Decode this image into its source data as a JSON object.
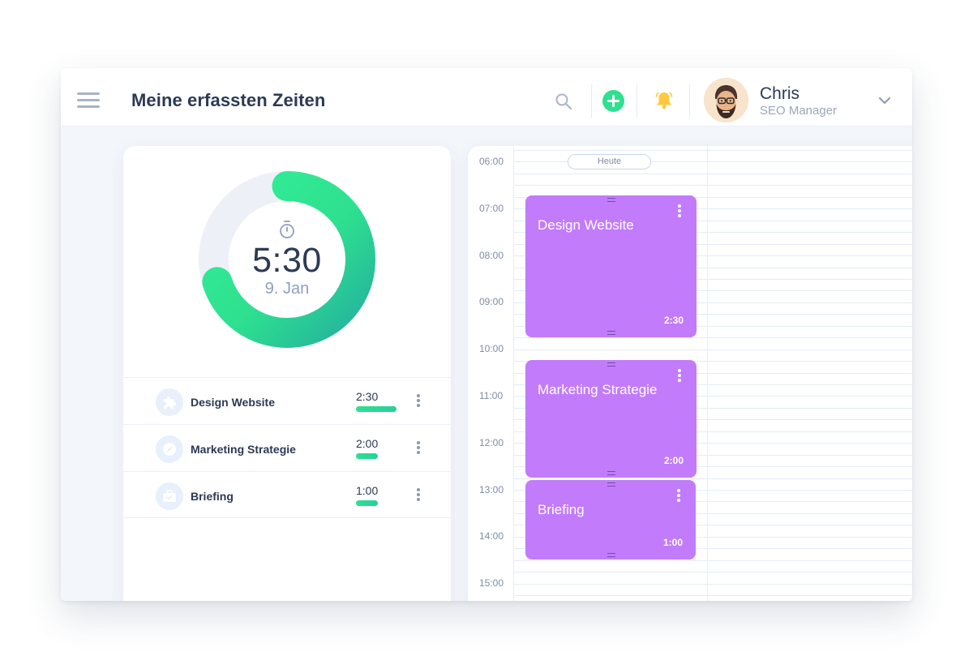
{
  "header": {
    "title": "Meine erfassten Zeiten",
    "user": {
      "name": "Chris",
      "role": "SEO Manager"
    }
  },
  "timer": {
    "value": "5:30",
    "date": "9. Jan",
    "progress_fraction": 0.7,
    "colors": {
      "ring_start": "#2ee08f",
      "ring_end": "#24b79e",
      "track": "#edf1f7"
    }
  },
  "tasks": [
    {
      "label": "Design Website",
      "duration": "2:30",
      "icon": "puzzle-icon",
      "bar_fraction": 1.0
    },
    {
      "label": "Marketing Strategie",
      "duration": "2:00",
      "icon": "compass-icon",
      "bar_fraction": 0.54
    },
    {
      "label": "Briefing",
      "duration": "1:00",
      "icon": "briefcase-icon",
      "bar_fraction": 0.54
    }
  ],
  "calendar": {
    "today_label": "Heute",
    "hours": [
      "06:00",
      "07:00",
      "08:00",
      "09:00",
      "10:00",
      "11:00",
      "12:00",
      "13:00",
      "14:00",
      "15:00"
    ],
    "events": [
      {
        "title": "Design Website",
        "duration": "2:30"
      },
      {
        "title": "Marketing Strategie",
        "duration": "2:00"
      },
      {
        "title": "Briefing",
        "duration": "1:00"
      }
    ],
    "event_color": "#c27bfb"
  }
}
